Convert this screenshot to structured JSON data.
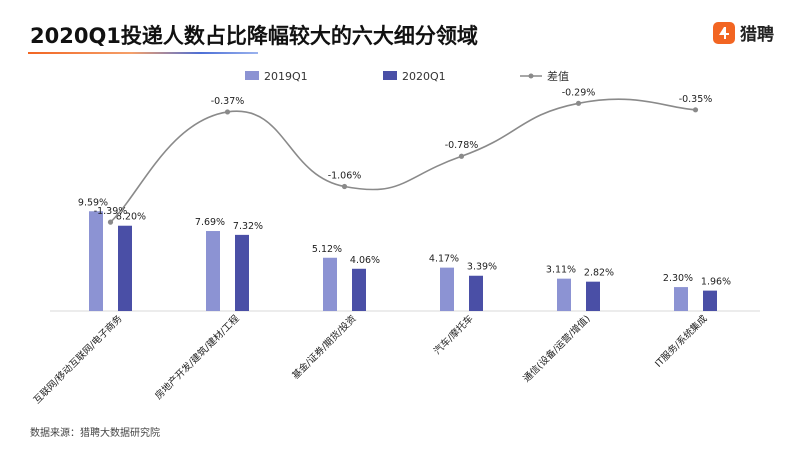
{
  "header": {
    "title": "2020Q1投递人数占比降幅较大的六大细分领域",
    "brand": "猎聘",
    "brand_color": "#f26522"
  },
  "source": "数据来源：猎聘大数据研究院",
  "chart_data": {
    "type": "bar",
    "categories": [
      "互联网/移动互联网/电子商务",
      "房地产开发/建筑/建材/工程",
      "基金/证券/期货/投资",
      "汽车/摩托车",
      "通信(设备/运营/增值)",
      "IT服务/系统集成"
    ],
    "series": [
      {
        "name": "2019Q1",
        "type": "bar",
        "values": [
          9.59,
          7.69,
          5.12,
          4.17,
          3.11,
          2.3
        ],
        "labels": [
          "9.59%",
          "7.69%",
          "5.12%",
          "4.17%",
          "3.11%",
          "2.30%"
        ],
        "color": "#8c93d3"
      },
      {
        "name": "2020Q1",
        "type": "bar",
        "values": [
          8.2,
          7.32,
          4.06,
          3.39,
          2.82,
          1.96
        ],
        "labels": [
          "8.20%",
          "7.32%",
          "4.06%",
          "3.39%",
          "2.82%",
          "1.96%"
        ],
        "color": "#4a4fa6"
      },
      {
        "name": "差值",
        "type": "line",
        "values": [
          -1.39,
          -0.37,
          -1.06,
          -0.78,
          -0.29,
          -0.35
        ],
        "labels": [
          "-1.39%",
          "-0.37%",
          "-1.06%",
          "-0.78%",
          "-0.29%",
          "-0.35%"
        ],
        "color": "#8a8a8a"
      }
    ],
    "legend_position": "top",
    "grid": false,
    "y_axis_visible": false,
    "title": "2020Q1投递人数占比降幅较大的六大细分领域"
  }
}
